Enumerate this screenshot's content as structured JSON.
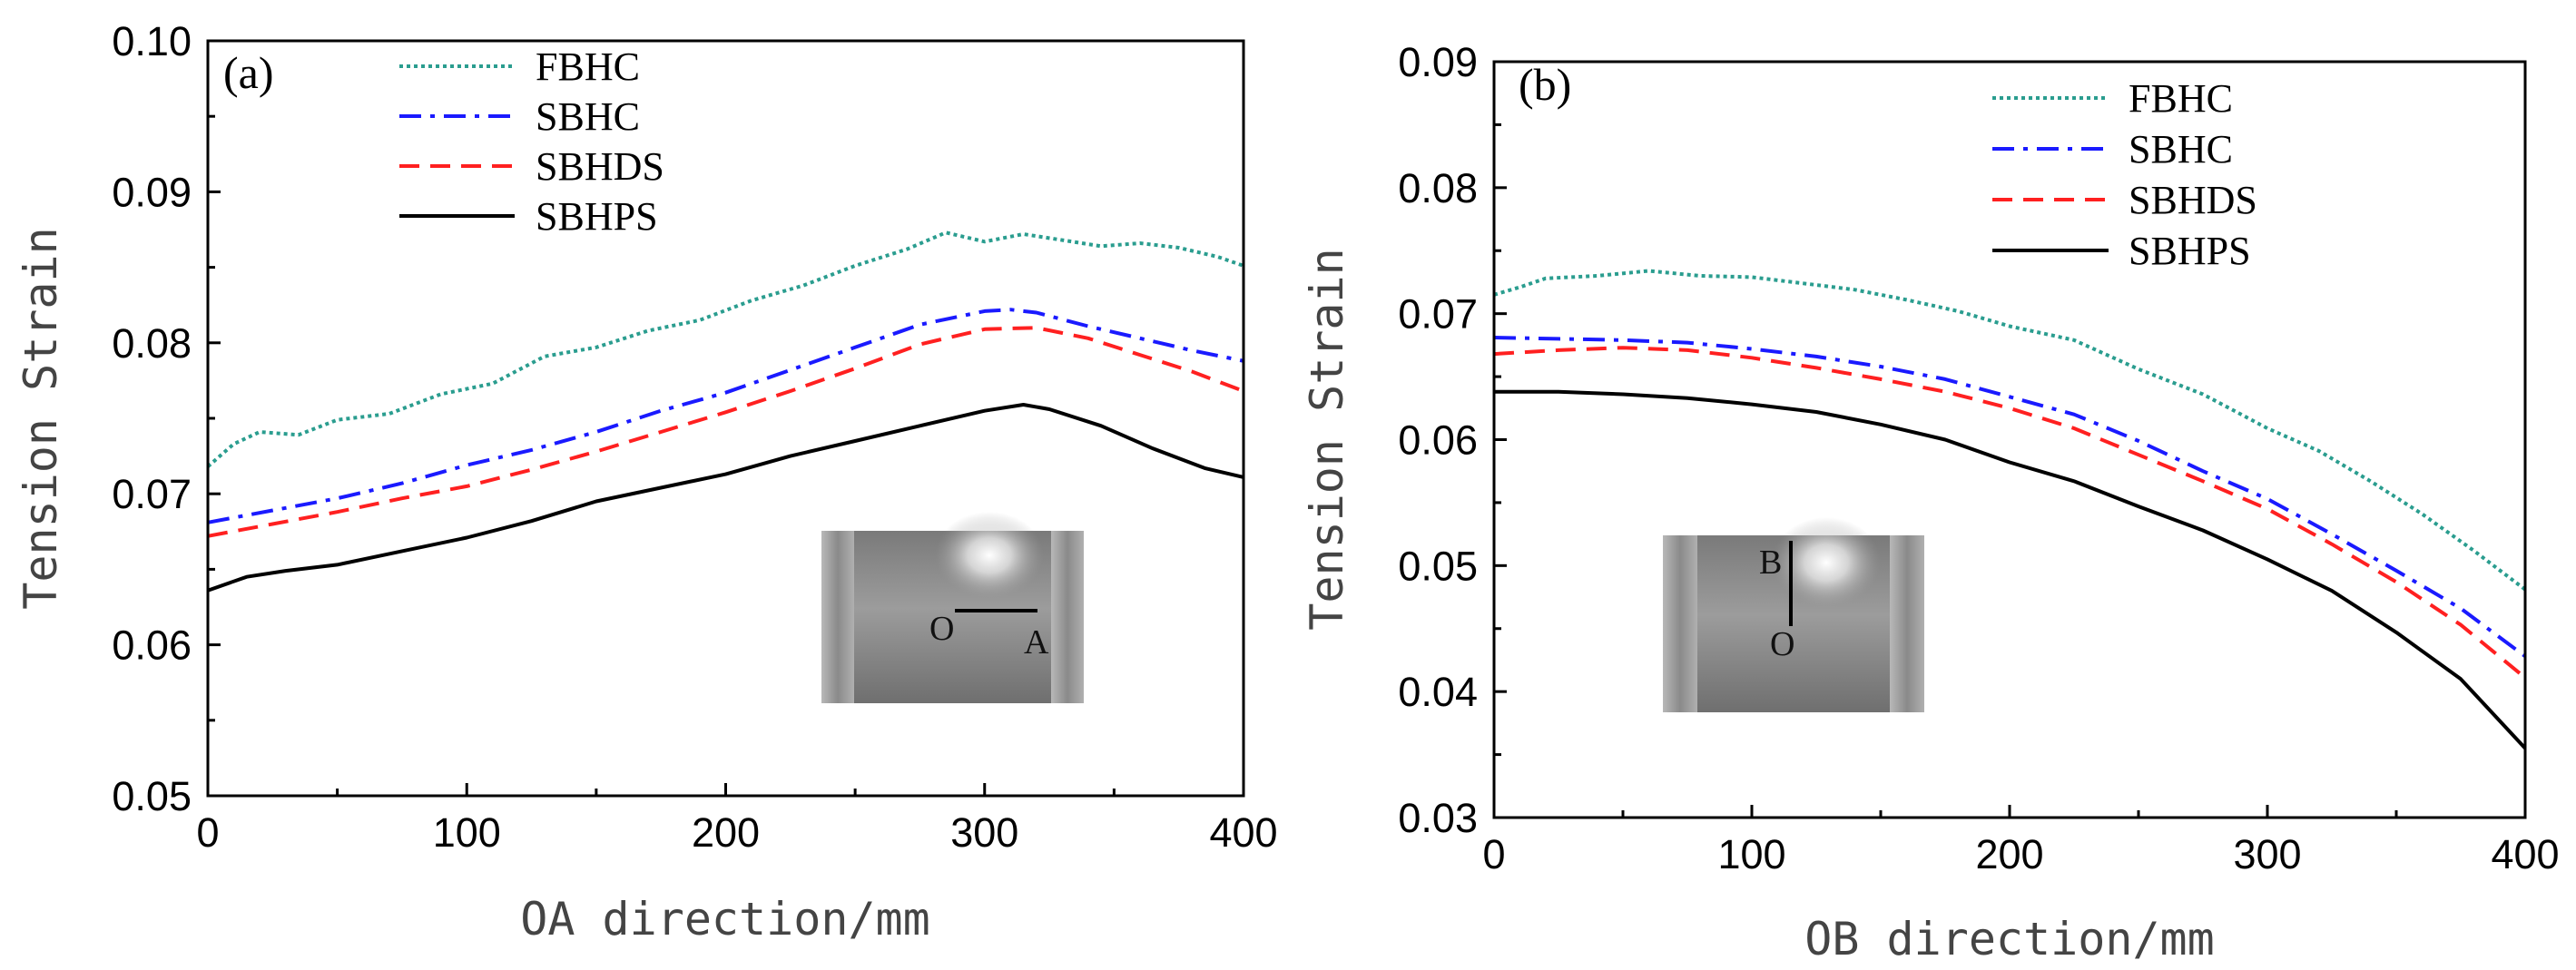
{
  "chart_data": [
    {
      "type": "line",
      "panel_label": "(a)",
      "xlabel": "OA direction/mm",
      "ylabel": "Tension Strain",
      "xlim": [
        0,
        400
      ],
      "ylim": [
        0.05,
        0.1
      ],
      "x_ticks": [
        0,
        100,
        200,
        300,
        400
      ],
      "y_ticks": [
        0.05,
        0.06,
        0.07,
        0.08,
        0.09,
        0.1
      ],
      "x_tick_labels": [
        "0",
        "100",
        "200",
        "300",
        "400"
      ],
      "y_tick_labels": [
        "0.05",
        "0.06",
        "0.07",
        "0.08",
        "0.09",
        "0.10"
      ],
      "legend_position": "top-left",
      "inset": {
        "label_start": "O",
        "label_end": "A",
        "orientation": "horizontal"
      },
      "series": [
        {
          "name": "FBHC",
          "style": "dotted",
          "color": "#2a9d8f",
          "x": [
            0,
            10,
            20,
            35,
            50,
            70,
            90,
            110,
            130,
            150,
            170,
            190,
            210,
            230,
            250,
            270,
            285,
            300,
            315,
            330,
            345,
            360,
            375,
            390,
            400
          ],
          "y": [
            0.0718,
            0.0733,
            0.0741,
            0.0739,
            0.0749,
            0.0753,
            0.0766,
            0.0773,
            0.0791,
            0.0797,
            0.0808,
            0.0815,
            0.0828,
            0.0838,
            0.0851,
            0.0862,
            0.0873,
            0.0867,
            0.0872,
            0.0868,
            0.0864,
            0.0866,
            0.0863,
            0.0857,
            0.0851
          ]
        },
        {
          "name": "SBHC",
          "style": "dashdot",
          "color": "#1a1aff",
          "x": [
            0,
            25,
            50,
            75,
            100,
            125,
            150,
            175,
            200,
            225,
            250,
            275,
            300,
            310,
            320,
            340,
            360,
            380,
            400
          ],
          "y": [
            0.0681,
            0.0689,
            0.0697,
            0.0707,
            0.0719,
            0.0729,
            0.0741,
            0.0755,
            0.0767,
            0.0782,
            0.0797,
            0.0812,
            0.0821,
            0.0822,
            0.082,
            0.0811,
            0.0803,
            0.0795,
            0.0788
          ]
        },
        {
          "name": "SBHDS",
          "style": "dashed",
          "color": "#ff2020",
          "x": [
            0,
            25,
            50,
            75,
            100,
            125,
            150,
            175,
            200,
            225,
            250,
            275,
            300,
            320,
            340,
            360,
            380,
            400
          ],
          "y": [
            0.0672,
            0.068,
            0.0688,
            0.0697,
            0.0705,
            0.0716,
            0.0728,
            0.0741,
            0.0754,
            0.0768,
            0.0783,
            0.0799,
            0.0809,
            0.081,
            0.0803,
            0.0792,
            0.0781,
            0.0768
          ]
        },
        {
          "name": "SBHPS",
          "style": "solid",
          "color": "#000000",
          "x": [
            0,
            15,
            30,
            50,
            75,
            100,
            125,
            150,
            175,
            200,
            225,
            250,
            275,
            300,
            315,
            325,
            345,
            365,
            385,
            400
          ],
          "y": [
            0.0636,
            0.0645,
            0.0649,
            0.0653,
            0.0662,
            0.0671,
            0.0682,
            0.0695,
            0.0704,
            0.0713,
            0.0725,
            0.0735,
            0.0745,
            0.0755,
            0.0759,
            0.0756,
            0.0745,
            0.073,
            0.0717,
            0.0711
          ]
        }
      ]
    },
    {
      "type": "line",
      "panel_label": "(b)",
      "xlabel": "OB direction/mm",
      "ylabel": "Tension Strain",
      "xlim": [
        0,
        400
      ],
      "ylim": [
        0.03,
        0.09
      ],
      "x_ticks": [
        0,
        100,
        200,
        300,
        400
      ],
      "y_ticks": [
        0.03,
        0.04,
        0.05,
        0.06,
        0.07,
        0.08,
        0.09
      ],
      "x_tick_labels": [
        "0",
        "100",
        "200",
        "300",
        "400"
      ],
      "y_tick_labels": [
        "0.03",
        "0.04",
        "0.05",
        "0.06",
        "0.07",
        "0.08",
        "0.09"
      ],
      "legend_position": "top-right",
      "inset": {
        "label_start": "O",
        "label_end": "B",
        "orientation": "vertical"
      },
      "series": [
        {
          "name": "FBHC",
          "style": "dotted",
          "color": "#2a9d8f",
          "x": [
            0,
            10,
            20,
            40,
            60,
            80,
            100,
            120,
            140,
            160,
            180,
            200,
            225,
            250,
            275,
            300,
            320,
            340,
            360,
            380,
            400
          ],
          "y": [
            0.0715,
            0.0721,
            0.0728,
            0.073,
            0.0734,
            0.073,
            0.0729,
            0.0724,
            0.0719,
            0.0711,
            0.0702,
            0.069,
            0.0679,
            0.0656,
            0.0636,
            0.0609,
            0.0591,
            0.0567,
            0.0541,
            0.0512,
            0.0481
          ]
        },
        {
          "name": "SBHC",
          "style": "dashdot",
          "color": "#1a1aff",
          "x": [
            0,
            25,
            50,
            75,
            100,
            125,
            150,
            175,
            200,
            225,
            250,
            275,
            300,
            325,
            350,
            375,
            400
          ],
          "y": [
            0.0681,
            0.068,
            0.0679,
            0.0677,
            0.0672,
            0.0666,
            0.0658,
            0.0648,
            0.0634,
            0.062,
            0.0599,
            0.0575,
            0.0553,
            0.0525,
            0.0496,
            0.0466,
            0.0428
          ]
        },
        {
          "name": "SBHDS",
          "style": "dashed",
          "color": "#ff2020",
          "x": [
            0,
            25,
            50,
            75,
            100,
            125,
            150,
            175,
            200,
            225,
            250,
            275,
            300,
            325,
            350,
            375,
            400
          ],
          "y": [
            0.0668,
            0.0671,
            0.0673,
            0.0671,
            0.0665,
            0.0657,
            0.0648,
            0.0638,
            0.0625,
            0.0609,
            0.0588,
            0.0567,
            0.0545,
            0.0517,
            0.0487,
            0.0453,
            0.0411
          ]
        },
        {
          "name": "SBHPS",
          "style": "solid",
          "color": "#000000",
          "x": [
            0,
            25,
            50,
            75,
            100,
            125,
            150,
            175,
            200,
            225,
            250,
            275,
            300,
            325,
            350,
            375,
            400
          ],
          "y": [
            0.0638,
            0.0638,
            0.0636,
            0.0633,
            0.0628,
            0.0622,
            0.0612,
            0.06,
            0.0582,
            0.0567,
            0.0547,
            0.0528,
            0.0505,
            0.048,
            0.0447,
            0.041,
            0.0355
          ]
        }
      ]
    }
  ]
}
